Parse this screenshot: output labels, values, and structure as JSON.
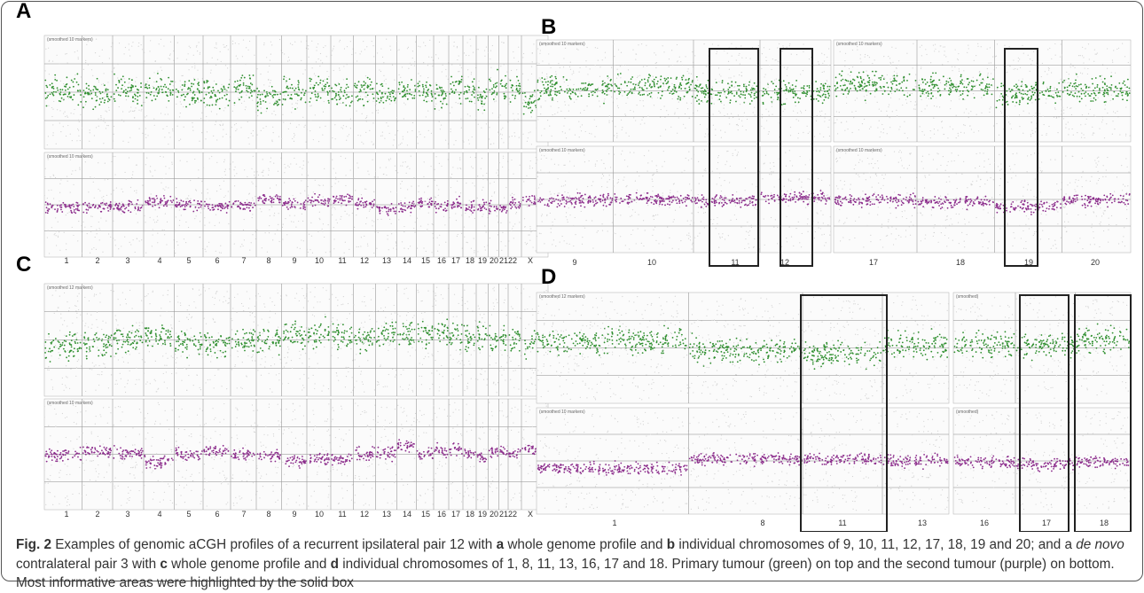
{
  "panels": [
    {
      "letter": "A",
      "headers": [
        "(smoothed 10 markers)",
        "(smoothed 10 markers)"
      ],
      "chromosomes": [
        "1",
        "2",
        "3",
        "4",
        "5",
        "6",
        "7",
        "8",
        "9",
        "10",
        "11",
        "12",
        "13",
        "14",
        "15",
        "16",
        "17",
        "18",
        "19",
        "20",
        "21",
        "22",
        "X"
      ]
    },
    {
      "letter": "B",
      "headers": [
        "(smoothed 10 markers)",
        "(smoothed 10 markers)",
        "(smoothed 10 markers)",
        "(smoothed 10 markers)"
      ],
      "chromosomes": [
        "9",
        "10",
        "11",
        "12",
        "17",
        "18",
        "19",
        "20"
      ]
    },
    {
      "letter": "C",
      "headers": [
        "(smoothed 12 markers)",
        "(smoothed 10 markers)"
      ],
      "chromosomes": [
        "1",
        "2",
        "3",
        "4",
        "5",
        "6",
        "7",
        "8",
        "9",
        "10",
        "11",
        "12",
        "13",
        "14",
        "15",
        "16",
        "17",
        "18",
        "19",
        "20",
        "21",
        "22",
        "X"
      ]
    },
    {
      "letter": "D",
      "headers": [
        "(smoothed 12 markers)",
        "(smoothed 10 markers)",
        "(smoothed)",
        "(smoothed)"
      ],
      "chromosomes": [
        "1",
        "8",
        "11",
        "13",
        "16",
        "17",
        "18"
      ]
    }
  ],
  "caption": [
    "Fig. 2",
    " Examples of genomic aCGH profiles of a recurrent ipsilateral pair 12 with ",
    "a",
    " whole genome profile and ",
    "b",
    " individual chromosomes of 9, 10, 11, 12, 17, 18, 19 and 20; and a ",
    "de novo",
    " contralateral pair 3 with ",
    "c",
    " whole genome profile and ",
    "d",
    " individual chromosomes of 1, 8, 11, 13, 16, 17 and 18. Primary tumour (green) on top and the second tumour (purple) on bottom. Most informative areas were highlighted by the solid box"
  ]
}
